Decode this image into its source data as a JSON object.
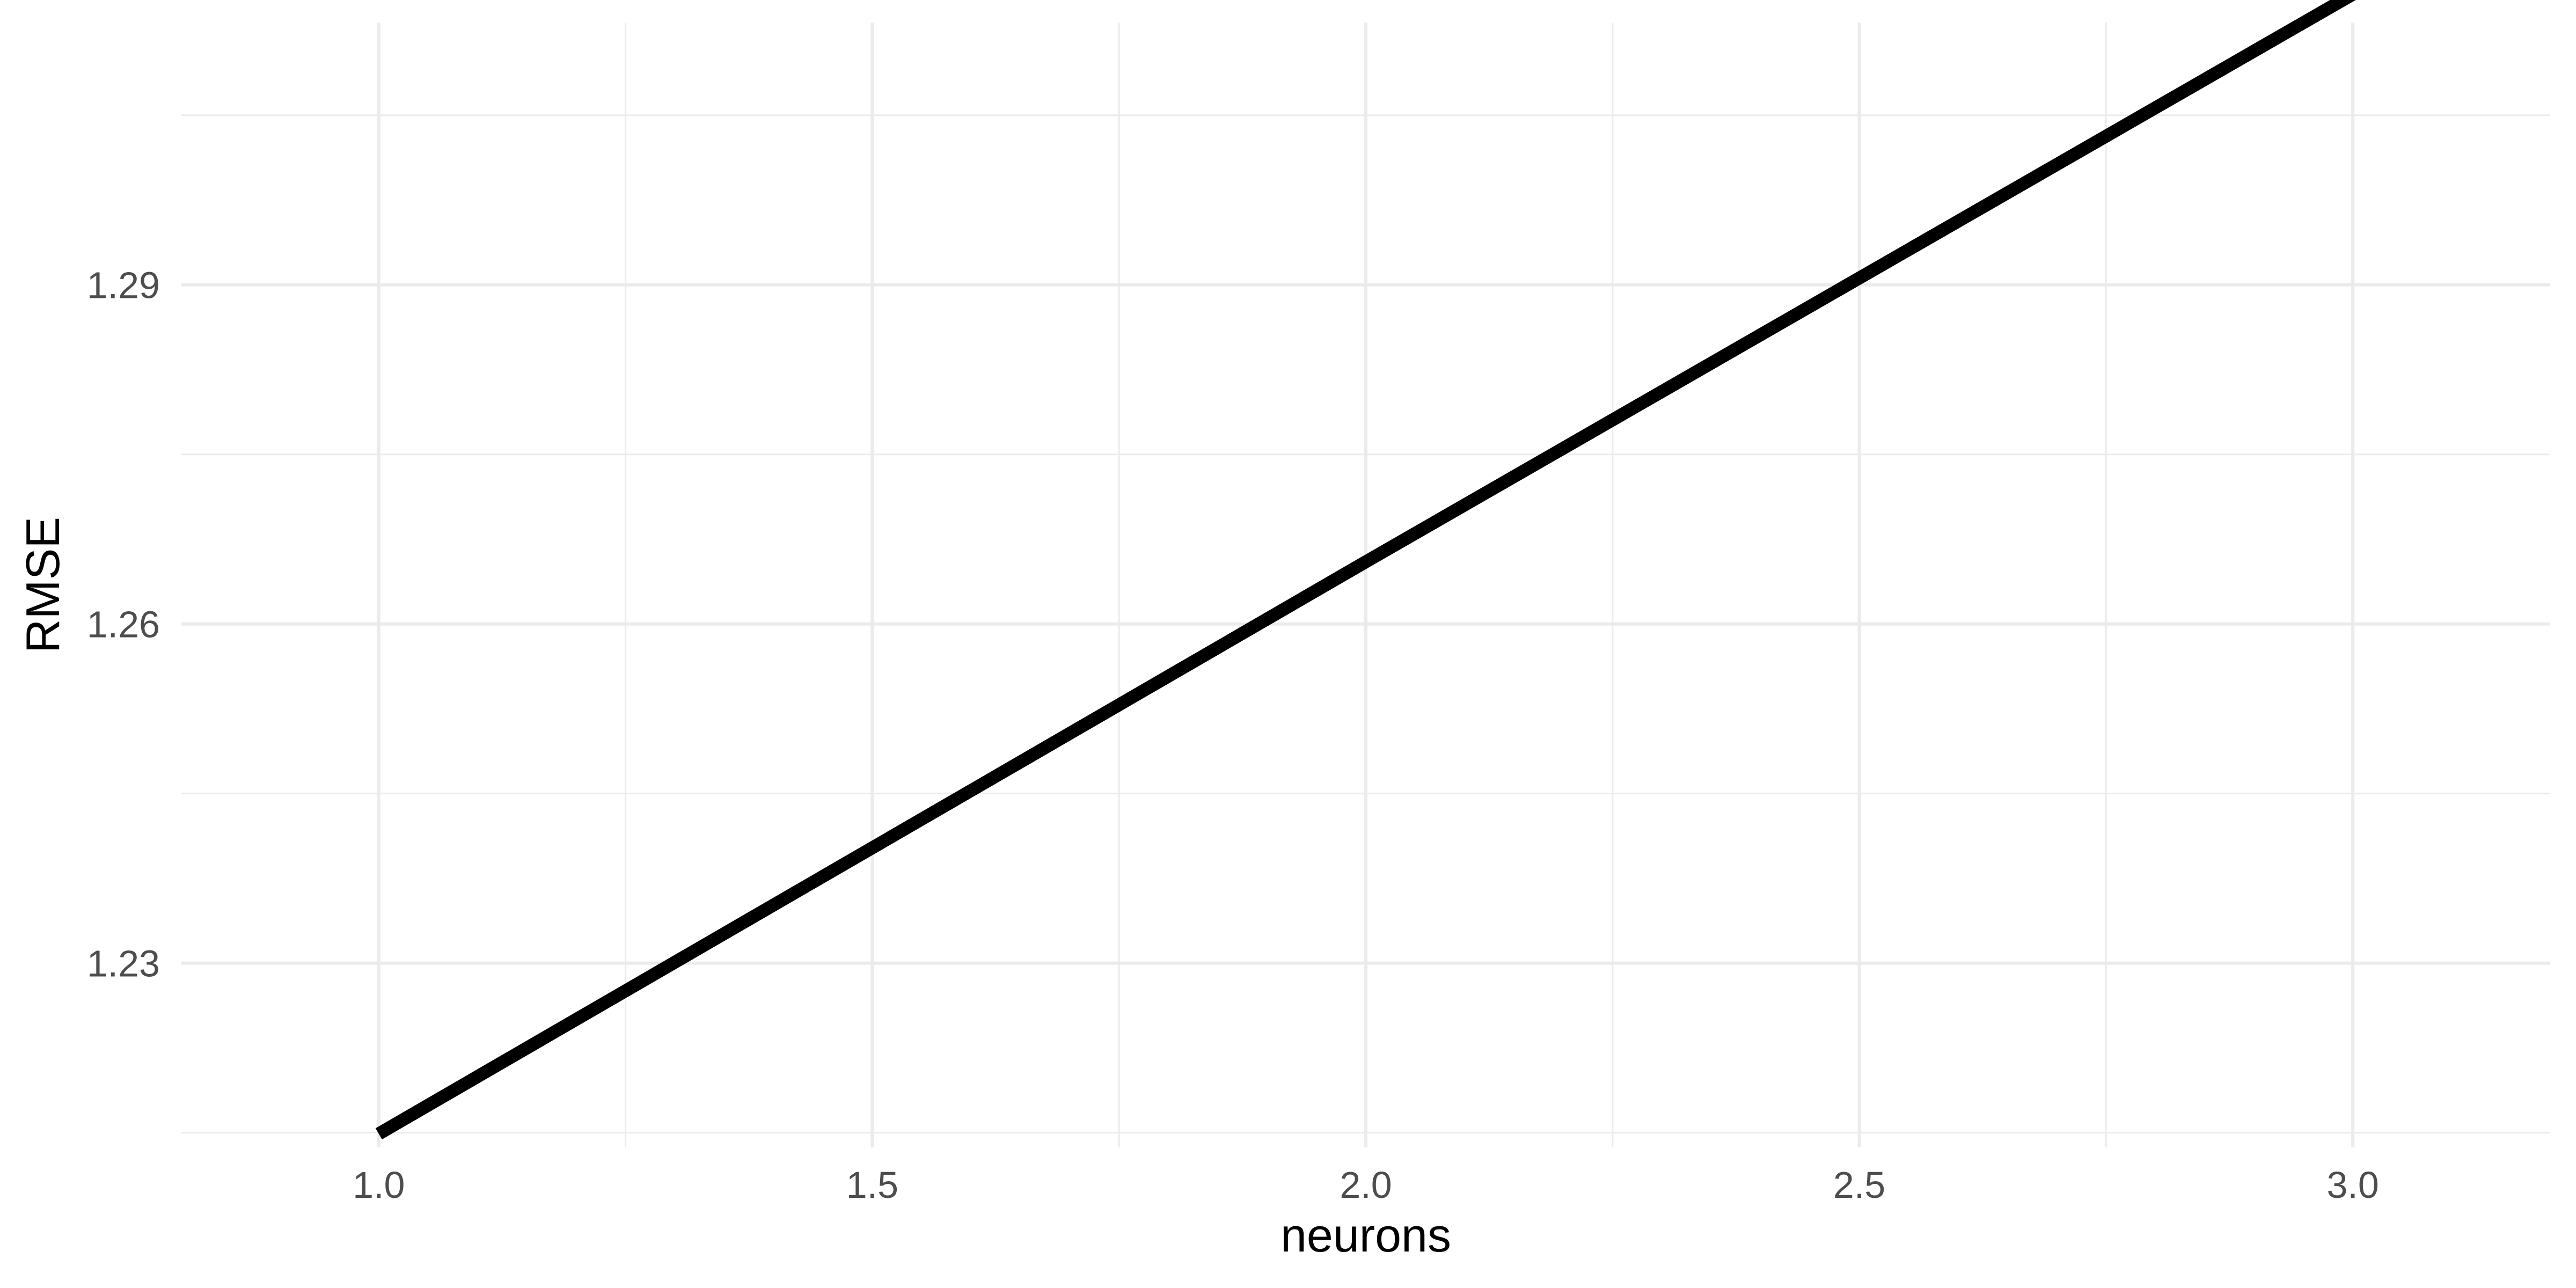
{
  "chart_data": {
    "type": "line",
    "xlabel": "neurons",
    "ylabel": "RMSE",
    "xlim": [
      0.8,
      3.2
    ],
    "ylim": [
      1.2137,
      1.3132
    ],
    "x_ticks": [
      1.0,
      1.5,
      2.0,
      2.5,
      3.0
    ],
    "x_tick_labels": [
      "1.0",
      "1.5",
      "2.0",
      "2.5",
      "3.0"
    ],
    "x_minor_ticks": [
      1.25,
      1.75,
      2.25,
      2.75
    ],
    "y_ticks": [
      1.23,
      1.26,
      1.29
    ],
    "y_tick_labels": [
      "1.23",
      "1.26",
      "1.29"
    ],
    "y_minor_ticks": [
      1.215,
      1.245,
      1.275,
      1.305
    ],
    "grid": true,
    "legend": "none",
    "line_color": "#000000",
    "series": [
      {
        "x": [
          1,
          2,
          3
        ],
        "values": [
          1.2149,
          1.2655,
          1.3157
        ]
      }
    ]
  }
}
